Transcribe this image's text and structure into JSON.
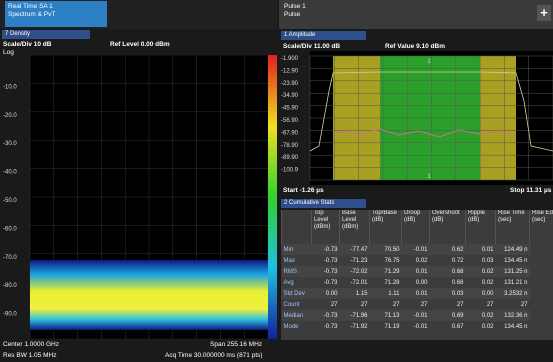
{
  "left_panel": {
    "tab": [
      "Real Time SA 1",
      "Spectrum & PvT"
    ],
    "view": "7 Density",
    "scale": "Scale/Div 10 dB",
    "ref": "Ref Level 0.00 dBm",
    "log": "Log",
    "y_labels": [
      "-10.0",
      "-20.0",
      "-30.0",
      "-40.0",
      "-50.0",
      "-60.0",
      "-70.0",
      "-80.0",
      "-90.0"
    ],
    "footer": [
      "Center 1.0000 GHz",
      "Span 255.16 MHz",
      "Res BW 1.05 MHz",
      "Acq Time 30.000000 ms (871 pts)"
    ]
  },
  "right_panel": {
    "tab": [
      "Pulse 1",
      "Pulse"
    ],
    "add_button": "+",
    "view": "1 Amplitude",
    "scale": "Scale/Div 11.00 dB",
    "ref": "Ref Value 9.10 dBm",
    "marker": "1",
    "y_labels": [
      "-1.900",
      "-12.90",
      "-23.90",
      "-34.90",
      "-45.90",
      "-56.90",
      "-67.90",
      "-78.90",
      "-89.90",
      "-100.9"
    ],
    "start": "Start -1.26 µs",
    "stop": "Stop 11.31 µs",
    "stats_view": "2 Cumulative Stats",
    "table": {
      "headers": [
        "Top Level (dBm)",
        "Base Level (dBm)",
        "Top/Base (dB)",
        "Droop (dB)",
        "Overshoot (dB)",
        "Ripple (dB)",
        "Rise Time (sec)",
        "Rise Edge (sec)"
      ],
      "rows": [
        [
          "Min",
          "-0.73",
          "-77.47",
          "70.50",
          "-0.01",
          "0.62",
          "0.01",
          "124.49 n"
        ],
        [
          "Max",
          "-0.73",
          "-71.23",
          "76.75",
          "0.02",
          "0.72",
          "0.03",
          "134.45 n"
        ],
        [
          "RMS",
          "-0.73",
          "-72.02",
          "71.29",
          "0.01",
          "0.68",
          "0.02",
          "131.25 n"
        ],
        [
          "Avg",
          "-0.73",
          "-72.01",
          "71.28",
          "0.00",
          "0.68",
          "0.02",
          "131.21 n"
        ],
        [
          "Std Dev",
          "0.00",
          "1.15",
          "1.11",
          "0.01",
          "0.03",
          "0.00",
          "3.2532 n"
        ],
        [
          "Count",
          "27",
          "27",
          "27",
          "27",
          "27",
          "27",
          "27"
        ],
        [
          "Median",
          "-0.73",
          "-71.96",
          "71.13",
          "-0.01",
          "0.69",
          "0.02",
          "132.36 n"
        ],
        [
          "Mode",
          "-0.73",
          "-71.92",
          "71.19",
          "-0.01",
          "0.67",
          "0.02",
          "134.45 n"
        ]
      ]
    }
  }
}
